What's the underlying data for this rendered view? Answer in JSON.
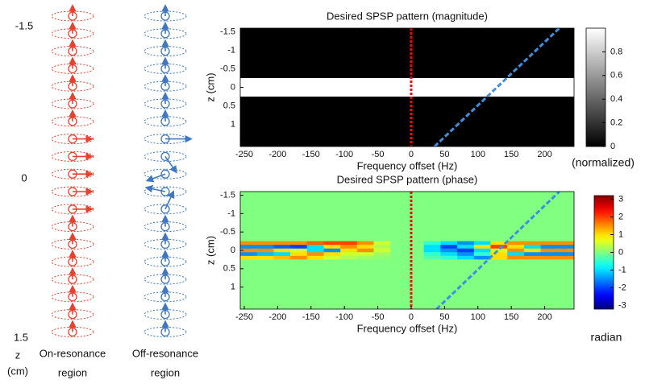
{
  "diagram": {
    "z_top": "-1.5",
    "z_mid": "0",
    "z_bottom": "1.5",
    "z_label": "z",
    "z_unit": "(cm)",
    "columns": [
      {
        "label_line1": "On-resonance",
        "label_line2": "region"
      },
      {
        "label_line1": "Off-resonance",
        "label_line2": "region"
      }
    ]
  },
  "chart_data": [
    {
      "type": "heatmap",
      "title": "Desired SPSP pattern (magnitude)",
      "xlabel": "Frequency offset (Hz)",
      "ylabel": "z (cm)",
      "x_bins": [
        -256,
        244
      ],
      "y_bins": [
        -1.6,
        -0.25,
        0.25,
        1.6
      ],
      "values": [
        [
          0
        ],
        [
          1
        ],
        [
          0
        ]
      ],
      "xlim": [
        -256,
        244
      ],
      "ylim": [
        -1.6,
        1.6
      ],
      "y_inverted": true,
      "xticks": [
        -250,
        -200,
        -150,
        -100,
        -50,
        0,
        50,
        100,
        150,
        200
      ],
      "yticks": [
        -1.5,
        -1,
        -0.5,
        0,
        0.5,
        1
      ],
      "colormap": "gray",
      "clim": [
        0,
        1
      ],
      "cbar_ticks": [
        0,
        0.2,
        0.4,
        0.6,
        0.8
      ],
      "cbar_label": "(normalized)",
      "overlays": [
        {
          "color": "#e8100e",
          "x": [
            0,
            0
          ],
          "y": [
            -1.6,
            1.6
          ]
        },
        {
          "color": "#3f8fe0",
          "x": [
            35,
            222
          ],
          "y": [
            1.6,
            -1.6
          ]
        }
      ]
    },
    {
      "type": "heatmap",
      "title": "Desired SPSP pattern (phase)",
      "xlabel": "Frequency offset (Hz)",
      "ylabel": "z (cm)",
      "x_bins": [
        -256,
        -231,
        -206,
        -181,
        -156,
        -131,
        -106,
        -81,
        -56,
        -31,
        -6,
        19,
        44,
        69,
        94,
        119,
        144,
        169,
        194,
        219,
        244
      ],
      "y_bins": [
        -1.6,
        -0.25,
        -0.15,
        -0.05,
        0.05,
        0.15,
        0.25,
        1.6
      ],
      "values": [
        [
          0,
          0,
          0,
          0,
          0,
          0,
          0,
          0,
          0,
          0,
          0,
          0,
          0,
          0,
          0,
          0,
          0,
          0,
          0,
          0
        ],
        [
          1.5,
          1.5,
          1.5,
          1.5,
          1.8,
          2,
          2,
          1.5,
          0.5,
          0,
          0,
          -0.5,
          -1,
          -1.5,
          -1,
          1,
          1.5,
          1.5,
          1.5,
          1.5
        ],
        [
          -1.5,
          -1.5,
          -1.8,
          -2,
          -1,
          1,
          1.5,
          1,
          0.3,
          0,
          0,
          -1,
          -2,
          -1,
          1,
          2,
          1,
          -1,
          -1.5,
          -1.5
        ],
        [
          1.5,
          1.5,
          1,
          0.5,
          -1,
          -1.5,
          1,
          1.5,
          0.5,
          0,
          0,
          -1,
          -1.5,
          -2,
          -1,
          0.5,
          1.5,
          1,
          1.5,
          1.5
        ],
        [
          -1.5,
          -1.2,
          -1,
          1,
          1.5,
          1,
          0.5,
          0.5,
          0.2,
          0,
          0,
          -0.5,
          -1,
          -1.5,
          -0.5,
          1,
          -1,
          -1.5,
          -1.5,
          -1.5
        ],
        [
          1,
          1,
          1.2,
          1.5,
          1,
          0.5,
          0.3,
          0.2,
          0.1,
          0,
          0,
          -0.3,
          -0.5,
          -1,
          -1.5,
          1,
          1.5,
          1.5,
          1.5,
          1.5
        ],
        [
          0,
          0,
          0,
          0,
          0,
          0,
          0,
          0,
          0,
          0,
          0,
          0,
          0,
          0,
          0,
          0,
          0,
          0,
          0,
          0
        ]
      ],
      "xlim": [
        -256,
        244
      ],
      "ylim": [
        -1.6,
        1.6
      ],
      "y_inverted": true,
      "xticks": [
        -250,
        -200,
        -150,
        -100,
        -50,
        0,
        50,
        100,
        150,
        200
      ],
      "yticks": [
        -1.5,
        -1,
        -0.5,
        0,
        0.5,
        1
      ],
      "colormap": "jet",
      "clim": [
        -3.2,
        3.2
      ],
      "cbar_ticks": [
        -3,
        -2,
        -1,
        0,
        1,
        2,
        3
      ],
      "cbar_label": "radian",
      "overlays": [
        {
          "color": "#e8100e",
          "x": [
            0,
            0
          ],
          "y": [
            -1.6,
            1.6
          ]
        },
        {
          "color": "#3f8fe0",
          "x": [
            38,
            222
          ],
          "y": [
            1.6,
            -1.6
          ]
        }
      ]
    }
  ]
}
